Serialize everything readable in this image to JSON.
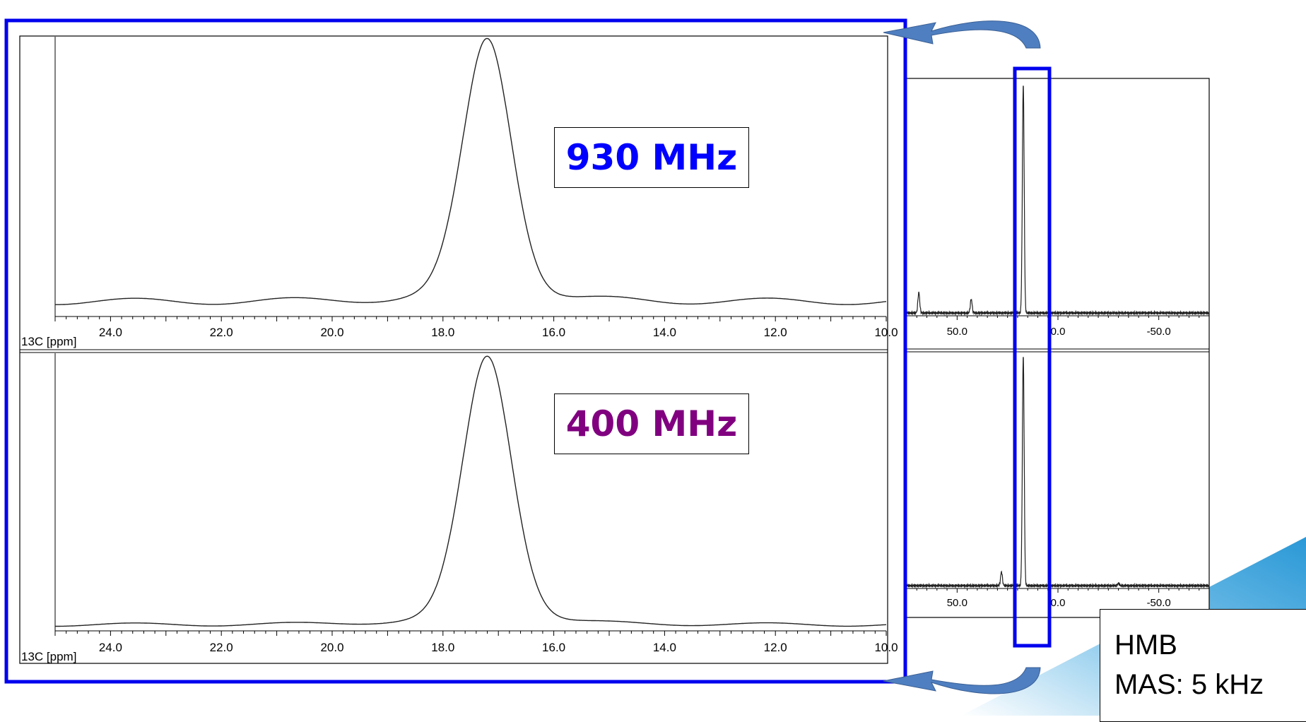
{
  "colors": {
    "highlight_box": "#0000ee",
    "label_930": "#0000ff",
    "label_400": "#800080",
    "arrow": "#4f7fc0",
    "corner_accent": "#3fa3dd"
  },
  "labels": {
    "top": "930 MHz",
    "bottom": "400 MHz"
  },
  "info": {
    "sample": "HMB",
    "mas": "MAS: 5 kHz"
  },
  "chart_data": [
    {
      "type": "line",
      "panel": "zoomed-930",
      "label": "930 MHz",
      "xlabel": "13C [ppm]",
      "xlim": [
        25.0,
        10.0
      ],
      "ticks": [
        "24.0",
        "22.0",
        "20.0",
        "18.0",
        "16.0",
        "14.0",
        "12.0",
        "10.0"
      ],
      "peak": {
        "center": 17.2,
        "height": 1.0,
        "fwhm": 1.05
      },
      "baseline": 0.02
    },
    {
      "type": "line",
      "panel": "zoomed-400",
      "label": "400 MHz",
      "xlabel": "13C [ppm]",
      "xlim": [
        25.0,
        10.0
      ],
      "ticks": [
        "24.0",
        "22.0",
        "20.0",
        "18.0",
        "16.0",
        "14.0",
        "12.0",
        "10.0"
      ],
      "peak": {
        "center": 17.2,
        "height": 1.0,
        "fwhm": 1.05
      },
      "baseline": 0.01
    },
    {
      "type": "line",
      "panel": "full-930",
      "xlim": [
        75,
        -75
      ],
      "ticks": [
        "50.0",
        "0.0",
        "-50.0"
      ],
      "peaks": [
        {
          "center": 17.2,
          "height": 1.0
        },
        {
          "center": 69.0,
          "height": 0.09
        },
        {
          "center": 43.0,
          "height": 0.06
        }
      ]
    },
    {
      "type": "line",
      "panel": "full-400",
      "xlim": [
        75,
        -75
      ],
      "ticks": [
        "50.0",
        "0.0",
        "-50.0"
      ],
      "peaks": [
        {
          "center": 17.2,
          "height": 1.0
        },
        {
          "center": 28.0,
          "height": 0.06
        },
        {
          "center": -30.0,
          "height": 0.01
        }
      ]
    }
  ]
}
